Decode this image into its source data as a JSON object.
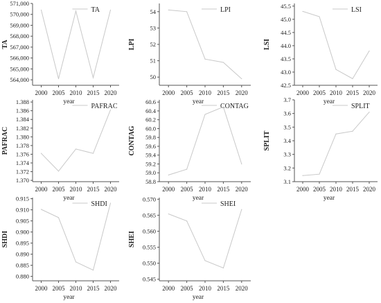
{
  "chart_data": [
    {
      "type": "line",
      "ylabel": "TA",
      "xlabel": "year",
      "legend": "TA",
      "x": [
        2000,
        2005,
        2010,
        2015,
        2020
      ],
      "values": [
        570400,
        564100,
        570300,
        564200,
        570400
      ],
      "yticks": [
        "571,000",
        "570,000",
        "569,000",
        "568,000",
        "567,000",
        "566,000",
        "565,000",
        "564,000"
      ],
      "ylim": [
        563500,
        571000
      ]
    },
    {
      "type": "line",
      "ylabel": "LPI",
      "xlabel": "year",
      "legend": "LPI",
      "x": [
        2000,
        2005,
        2010,
        2015,
        2020
      ],
      "values": [
        54.1,
        54.0,
        51.1,
        50.9,
        49.9
      ],
      "yticks": [
        "54",
        "53",
        "52",
        "51",
        "50"
      ],
      "ylim": [
        49.5,
        54.5
      ]
    },
    {
      "type": "line",
      "ylabel": "LSI",
      "xlabel": "year",
      "legend": "LSI",
      "x": [
        2000,
        2005,
        2010,
        2015,
        2020
      ],
      "values": [
        45.3,
        45.1,
        43.1,
        42.75,
        43.8
      ],
      "yticks": [
        "45.5",
        "45.0",
        "44.5",
        "44.0",
        "43.5",
        "43.0",
        "42.5"
      ],
      "ylim": [
        42.5,
        45.6
      ]
    },
    {
      "type": "line",
      "ylabel": "PAFRAC",
      "xlabel": "year",
      "legend": "PAFRAC",
      "x": [
        2000,
        2005,
        2010,
        2015,
        2020
      ],
      "values": [
        1.3762,
        1.3721,
        1.3772,
        1.3762,
        1.3862
      ],
      "yticks": [
        "1.388",
        "1.386",
        "1.384",
        "1.382",
        "1.380",
        "1.378",
        "1.376",
        "1.374",
        "1.372",
        "1.370"
      ],
      "ylim": [
        1.3697,
        1.3885
      ]
    },
    {
      "type": "line",
      "ylabel": "CONTAG",
      "xlabel": "year",
      "legend": "CONTAG",
      "x": [
        2000,
        2005,
        2010,
        2015,
        2020
      ],
      "values": [
        58.95,
        59.08,
        60.32,
        60.49,
        59.2
      ],
      "yticks": [
        "60.6",
        "60.4",
        "60.2",
        "60.0",
        "59.8",
        "59.6",
        "59.4",
        "59.2",
        "59.0",
        "58.8"
      ],
      "ylim": [
        58.8,
        60.65
      ]
    },
    {
      "type": "line",
      "ylabel": "SPLIT",
      "xlabel": "year",
      "legend": "SPLIT",
      "x": [
        2000,
        2005,
        2010,
        2015,
        2020
      ],
      "values": [
        3.145,
        3.155,
        3.45,
        3.47,
        3.61
      ],
      "yticks": [
        "3.7",
        "3.6",
        "3.5",
        "3.4",
        "3.3",
        "3.2",
        "3.1"
      ],
      "ylim": [
        3.1,
        3.7
      ]
    },
    {
      "type": "line",
      "ylabel": "SHDI",
      "xlabel": "year",
      "legend": "SHDI",
      "x": [
        2000,
        2005,
        2010,
        2015,
        2020
      ],
      "values": [
        0.9102,
        0.9065,
        0.8865,
        0.8828,
        0.913
      ],
      "yticks": [
        "0.915",
        "0.910",
        "0.905",
        "0.900",
        "0.895",
        "0.890",
        "0.885",
        "0.880"
      ],
      "ylim": [
        0.878,
        0.9155
      ]
    },
    {
      "type": "line",
      "ylabel": "SHEI",
      "xlabel": "year",
      "legend": "SHEI",
      "x": [
        2000,
        2005,
        2010,
        2015,
        2020
      ],
      "values": [
        0.5654,
        0.5632,
        0.5508,
        0.5485,
        0.5668
      ],
      "yticks": [
        "0.570",
        "0.565",
        "0.560",
        "0.555",
        "0.550",
        "0.545"
      ],
      "ylim": [
        0.5445,
        0.5705
      ]
    }
  ]
}
